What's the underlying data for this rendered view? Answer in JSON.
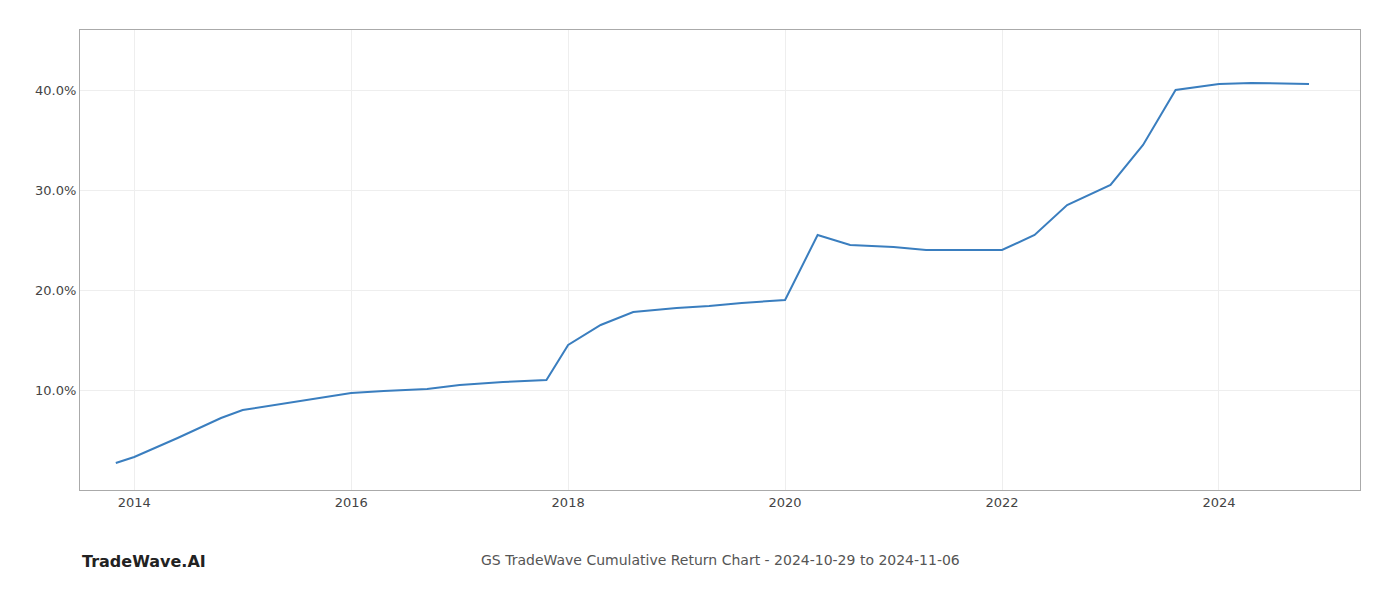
{
  "chart_data": {
    "type": "line",
    "title": "GS TradeWave Cumulative Return Chart - 2024-10-29 to 2024-11-06",
    "annotations": [
      "TradeWave.AI"
    ],
    "x": [
      2013.83,
      2014.0,
      2014.4,
      2014.8,
      2015.0,
      2015.3,
      2015.7,
      2016.0,
      2016.3,
      2016.7,
      2017.0,
      2017.4,
      2017.8,
      2018.0,
      2018.3,
      2018.6,
      2019.0,
      2019.3,
      2019.6,
      2020.0,
      2020.3,
      2020.6,
      2021.0,
      2021.3,
      2021.6,
      2022.0,
      2022.3,
      2022.6,
      2023.0,
      2023.3,
      2023.6,
      2024.0,
      2024.3,
      2024.83
    ],
    "values": [
      0.027,
      0.033,
      0.052,
      0.072,
      0.08,
      0.085,
      0.092,
      0.097,
      0.099,
      0.101,
      0.105,
      0.108,
      0.11,
      0.145,
      0.165,
      0.178,
      0.182,
      0.184,
      0.187,
      0.19,
      0.255,
      0.245,
      0.243,
      0.24,
      0.24,
      0.24,
      0.255,
      0.285,
      0.305,
      0.345,
      0.4,
      0.406,
      0.407,
      0.406
    ],
    "color": "#3a7ebf",
    "xlim": [
      2013.5,
      2025.3
    ],
    "ylim": [
      0.0,
      0.46
    ],
    "xticks": [
      2014,
      2016,
      2018,
      2020,
      2022,
      2024
    ],
    "yticks": [
      {
        "value": 0.1,
        "label": "10.0%"
      },
      {
        "value": 0.2,
        "label": "20.0%"
      },
      {
        "value": 0.3,
        "label": "30.0%"
      },
      {
        "value": 0.4,
        "label": "40.0%"
      }
    ],
    "grid": true
  }
}
